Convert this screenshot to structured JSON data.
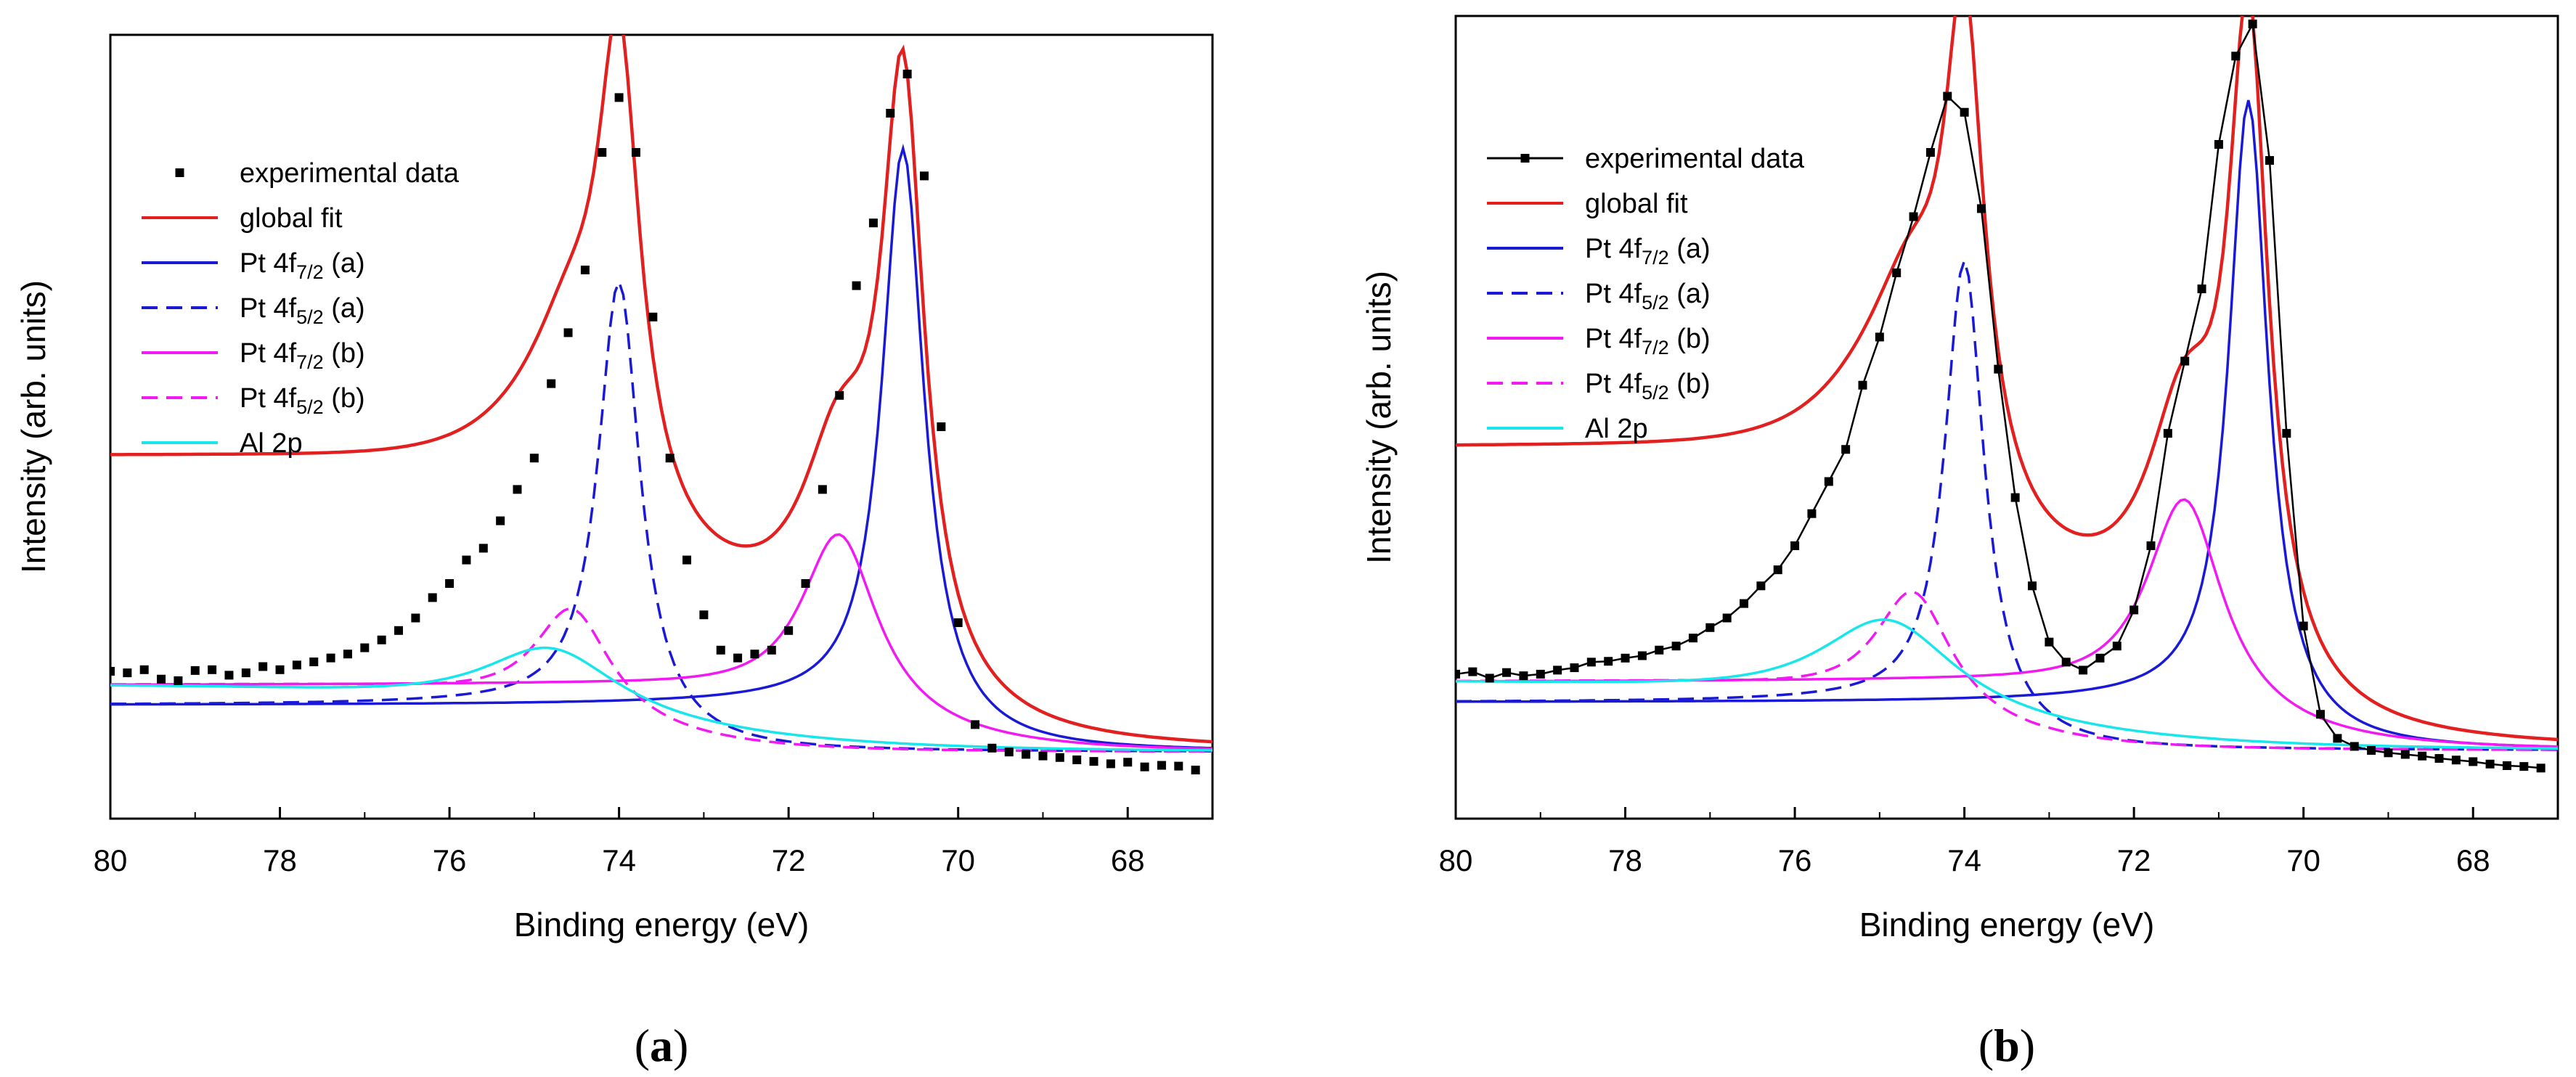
{
  "chart_data": [
    {
      "type": "line",
      "panel_label": "a",
      "xlabel": "Binding energy (eV)",
      "ylabel": "Intensity (arb. units)",
      "xlim": [
        80,
        67
      ],
      "x_reversed": true,
      "ylim": [
        0,
        1.0
      ],
      "y_ticks_shown": false,
      "x_ticks": [
        80,
        78,
        76,
        74,
        72,
        70,
        68
      ],
      "grid": false,
      "legend_position": "upper-left",
      "legend": [
        {
          "label": "experimental data",
          "base": "experimental data",
          "sub": "",
          "suffix": "",
          "color": "#000000",
          "style": "markers"
        },
        {
          "label": "global fit",
          "base": "global fit",
          "sub": "",
          "suffix": "",
          "color": "#e32020",
          "style": "solid"
        },
        {
          "label": "Pt 4f7/2 (a)",
          "base": "Pt 4f",
          "sub": "7/2",
          "suffix": " (a)",
          "color": "#1a1ad6",
          "style": "solid"
        },
        {
          "label": "Pt 4f5/2 (a)",
          "base": "Pt 4f",
          "sub": "5/2",
          "suffix": " (a)",
          "color": "#1a1ad6",
          "style": "dashed"
        },
        {
          "label": "Pt 4f7/2 (b)",
          "base": "Pt 4f",
          "sub": "7/2",
          "suffix": " (b)",
          "color": "#f21af2",
          "style": "solid"
        },
        {
          "label": "Pt 4f5/2 (b)",
          "base": "Pt 4f",
          "sub": "5/2",
          "suffix": " (b)",
          "color": "#f21af2",
          "style": "dashed"
        },
        {
          "label": "Al 2p",
          "base": "Al 2p",
          "sub": "",
          "suffix": "",
          "color": "#18e6ea",
          "style": "solid"
        }
      ],
      "model": {
        "peaks": [
          {
            "series": "Pt 4f7/2 (a)",
            "center": 70.65,
            "amp": 0.74,
            "gamma": 0.3,
            "step": 0.06
          },
          {
            "series": "Pt 4f5/2 (a)",
            "center": 74.0,
            "amp": 0.57,
            "gamma": 0.3,
            "step": 0.06
          },
          {
            "series": "Pt 4f7/2 (b)",
            "center": 71.4,
            "amp": 0.235,
            "gamma": 0.55,
            "step": 0.085
          },
          {
            "series": "Pt 4f5/2 (b)",
            "center": 74.55,
            "amp": 0.14,
            "gamma": 0.55,
            "step": 0.085
          },
          {
            "series": "Al 2p",
            "center": 74.8,
            "amp": 0.09,
            "gamma": 1.0,
            "step": 0.085
          }
        ],
        "baseline": 0.085
      },
      "experimental_data": {
        "x": [
          80.0,
          79.8,
          79.6,
          79.4,
          79.2,
          79.0,
          78.8,
          78.6,
          78.4,
          78.2,
          78.0,
          77.8,
          77.6,
          77.4,
          77.2,
          77.0,
          76.8,
          76.6,
          76.4,
          76.2,
          76.0,
          75.8,
          75.6,
          75.4,
          75.2,
          75.0,
          74.8,
          74.6,
          74.4,
          74.2,
          74.0,
          73.8,
          73.6,
          73.4,
          73.2,
          73.0,
          72.8,
          72.6,
          72.4,
          72.2,
          72.0,
          71.8,
          71.6,
          71.4,
          71.2,
          71.0,
          70.8,
          70.6,
          70.4,
          70.2,
          70.0,
          69.8,
          69.6,
          69.4,
          69.2,
          69.0,
          68.8,
          68.6,
          68.4,
          68.2,
          68.0,
          67.8,
          67.6,
          67.4,
          67.2
        ],
        "y": [
          0.188,
          0.186,
          0.19,
          0.178,
          0.176,
          0.189,
          0.19,
          0.183,
          0.186,
          0.194,
          0.19,
          0.196,
          0.2,
          0.205,
          0.21,
          0.218,
          0.228,
          0.24,
          0.256,
          0.282,
          0.3,
          0.33,
          0.345,
          0.38,
          0.42,
          0.46,
          0.555,
          0.62,
          0.7,
          0.85,
          0.92,
          0.85,
          0.64,
          0.46,
          0.33,
          0.26,
          0.215,
          0.205,
          0.21,
          0.215,
          0.24,
          0.3,
          0.42,
          0.54,
          0.68,
          0.76,
          0.9,
          0.95,
          0.82,
          0.5,
          0.25,
          0.12,
          0.09,
          0.085,
          0.082,
          0.08,
          0.078,
          0.075,
          0.073,
          0.07,
          0.072,
          0.066,
          0.068,
          0.067,
          0.062
        ]
      }
    },
    {
      "type": "line",
      "panel_label": "b",
      "xlabel": "Binding energy (eV)",
      "ylabel": "Intensity (arb. units)",
      "xlim": [
        80,
        67
      ],
      "x_reversed": true,
      "ylim": [
        0,
        1.0
      ],
      "y_ticks_shown": false,
      "x_ticks": [
        80,
        78,
        76,
        74,
        72,
        70,
        68
      ],
      "grid": false,
      "legend_position": "upper-left",
      "legend": [
        {
          "label": "experimental data",
          "base": "experimental data",
          "sub": "",
          "suffix": "",
          "color": "#000000",
          "style": "line-markers"
        },
        {
          "label": "global fit",
          "base": "global fit",
          "sub": "",
          "suffix": "",
          "color": "#e32020",
          "style": "solid"
        },
        {
          "label": "Pt 4f7/2 (a)",
          "base": "Pt 4f",
          "sub": "7/2",
          "suffix": " (a)",
          "color": "#1a1ad6",
          "style": "solid"
        },
        {
          "label": "Pt 4f5/2 (a)",
          "base": "Pt 4f",
          "sub": "5/2",
          "suffix": " (a)",
          "color": "#1a1ad6",
          "style": "dashed"
        },
        {
          "label": "Pt 4f7/2 (b)",
          "base": "Pt 4f",
          "sub": "7/2",
          "suffix": " (b)",
          "color": "#f21af2",
          "style": "solid"
        },
        {
          "label": "Pt 4f5/2 (b)",
          "base": "Pt 4f",
          "sub": "5/2",
          "suffix": " (b)",
          "color": "#f21af2",
          "style": "dashed"
        },
        {
          "label": "Al 2p",
          "base": "Al 2p",
          "sub": "",
          "suffix": "",
          "color": "#18e6ea",
          "style": "solid"
        }
      ],
      "model": {
        "peaks": [
          {
            "series": "Pt 4f7/2 (a)",
            "center": 70.65,
            "amp": 0.78,
            "gamma": 0.28,
            "step": 0.06
          },
          {
            "series": "Pt 4f5/2 (a)",
            "center": 74.0,
            "amp": 0.58,
            "gamma": 0.28,
            "step": 0.06
          },
          {
            "series": "Pt 4f7/2 (b)",
            "center": 71.4,
            "amp": 0.27,
            "gamma": 0.55,
            "step": 0.085
          },
          {
            "series": "Pt 4f5/2 (b)",
            "center": 74.6,
            "amp": 0.155,
            "gamma": 0.55,
            "step": 0.085
          },
          {
            "series": "Al 2p",
            "center": 74.9,
            "amp": 0.12,
            "gamma": 1.0,
            "step": 0.085
          }
        ],
        "baseline": 0.085
      },
      "experimental_data": {
        "x": [
          80.0,
          79.8,
          79.6,
          79.4,
          79.2,
          79.0,
          78.8,
          78.6,
          78.4,
          78.2,
          78.0,
          77.8,
          77.6,
          77.4,
          77.2,
          77.0,
          76.8,
          76.6,
          76.4,
          76.2,
          76.0,
          75.8,
          75.6,
          75.4,
          75.2,
          75.0,
          74.8,
          74.6,
          74.4,
          74.2,
          74.0,
          73.8,
          73.6,
          73.4,
          73.2,
          73.0,
          72.8,
          72.6,
          72.4,
          72.2,
          72.0,
          71.8,
          71.6,
          71.4,
          71.2,
          71.0,
          70.8,
          70.6,
          70.4,
          70.2,
          70.0,
          69.8,
          69.6,
          69.4,
          69.2,
          69.0,
          68.8,
          68.6,
          68.4,
          68.2,
          68.0,
          67.8,
          67.6,
          67.4,
          67.2
        ],
        "y": [
          0.18,
          0.183,
          0.175,
          0.182,
          0.178,
          0.18,
          0.185,
          0.188,
          0.195,
          0.196,
          0.2,
          0.203,
          0.21,
          0.215,
          0.225,
          0.238,
          0.25,
          0.268,
          0.29,
          0.31,
          0.34,
          0.38,
          0.42,
          0.46,
          0.54,
          0.6,
          0.68,
          0.75,
          0.83,
          0.9,
          0.88,
          0.76,
          0.56,
          0.4,
          0.29,
          0.22,
          0.195,
          0.185,
          0.2,
          0.215,
          0.26,
          0.34,
          0.48,
          0.57,
          0.66,
          0.84,
          0.95,
          0.99,
          0.82,
          0.48,
          0.24,
          0.13,
          0.1,
          0.09,
          0.085,
          0.082,
          0.08,
          0.078,
          0.075,
          0.073,
          0.071,
          0.068,
          0.066,
          0.065,
          0.063
        ]
      }
    }
  ]
}
